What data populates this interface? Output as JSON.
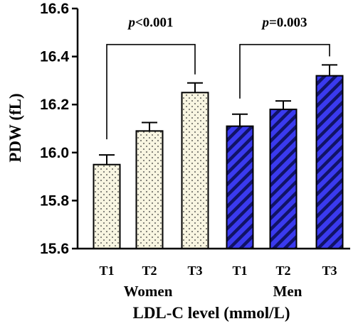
{
  "chart_data": {
    "type": "bar",
    "ylabel": "PDW (fL)",
    "xlabel": "LDL-C level (mmol/L)",
    "ylim": [
      15.6,
      16.6
    ],
    "yticks": [
      "15.6",
      "15.8",
      "16.0",
      "16.2",
      "16.4",
      "16.6"
    ],
    "groups": [
      {
        "name": "Women",
        "pattern": "dots",
        "fill_color": "#f8f5e1",
        "categories": [
          "T1",
          "T2",
          "T3"
        ],
        "values": [
          15.95,
          16.09,
          16.25
        ],
        "error_upper": [
          15.99,
          16.125,
          16.29
        ],
        "comparison": {
          "p_symbol": "p",
          "p_text": "<0.001"
        }
      },
      {
        "name": "Men",
        "pattern": "diagonal-stripes",
        "fill_color": "#3a3aef",
        "categories": [
          "T1",
          "T2",
          "T3"
        ],
        "values": [
          16.11,
          16.18,
          16.32
        ],
        "error_upper": [
          16.16,
          16.215,
          16.365
        ],
        "comparison": {
          "p_symbol": "p",
          "p_text": "=0.003"
        }
      }
    ],
    "grid": false,
    "legend": "none"
  }
}
